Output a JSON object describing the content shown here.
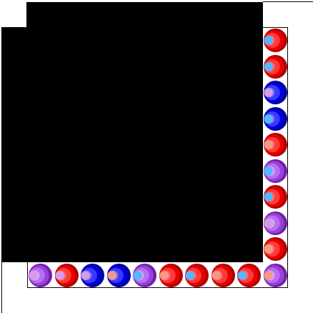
{
  "board": {
    "colors": {
      "red": {
        "dark": "#b30000",
        "mid": "#e60000",
        "light": "#ff3a3a",
        "highlight": "#ff6b6b"
      },
      "blue": {
        "dark": "#00009e",
        "mid": "#0000d8",
        "light": "#3a3aff",
        "highlight": "#7070ff"
      },
      "purple": {
        "dark": "#6e20a8",
        "mid": "#9a40d8",
        "light": "#b96ef0",
        "highlight": "#d6a8f6"
      },
      "frame": "#000000",
      "panel": "#000000"
    },
    "right_column": [
      {
        "color": "red",
        "spot": "#56b6ff"
      },
      {
        "color": "red",
        "spot": "#56b6ff"
      },
      {
        "color": "blue",
        "spot": "#d69be6"
      },
      {
        "color": "blue",
        "spot": "#56b6ff"
      },
      {
        "color": "red",
        "spot": "#f29a86"
      },
      {
        "color": "purple",
        "spot": "#56b6ff"
      },
      {
        "color": "red",
        "spot": "#56b6ff"
      },
      {
        "color": "purple",
        "spot": "#d69be6"
      },
      {
        "color": "red",
        "spot": "#f29a86"
      }
    ],
    "bottom_row": [
      {
        "color": "purple",
        "spot": "#d69be6"
      },
      {
        "color": "red",
        "spot": "#d69be6"
      },
      {
        "color": "blue",
        "spot": "#d69be6"
      },
      {
        "color": "blue",
        "spot": "#f29a86"
      },
      {
        "color": "purple",
        "spot": "#56b6ff"
      },
      {
        "color": "red",
        "spot": "#f29a86"
      },
      {
        "color": "red",
        "spot": "#56b6ff"
      },
      {
        "color": "red",
        "spot": "#f29a86"
      },
      {
        "color": "red",
        "spot": "#56b6ff"
      },
      {
        "color": "purple",
        "spot": "#f29a86"
      }
    ]
  }
}
